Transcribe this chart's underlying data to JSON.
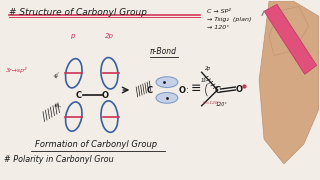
{
  "bg_color": "#f2ede6",
  "title_text": "# Structure of Carbonyl Group",
  "title_underline_color": "#d63a5a",
  "subtitle_text": "Formation of Carbonyl Group",
  "bottom_text": "# Polarity in Carbonyl Grou",
  "pink_label_text": "3r→sp²",
  "p_label": "p",
  "p2_label": "2p",
  "pi_bond_label": "π-Bond",
  "notes_line1": "C → SP²",
  "notes_line2": "→ Tsig₂  (plan)",
  "notes_line3": "→ 120°",
  "ellipse_color": "#3a5fa0",
  "pink_line_color": "#cc3355",
  "dark_color": "#1a1a1a",
  "hand_color": "#d4a882",
  "pen_color": "#e0507a",
  "blob_color": "#b8c8e8",
  "blob_edge": "#6688bb"
}
